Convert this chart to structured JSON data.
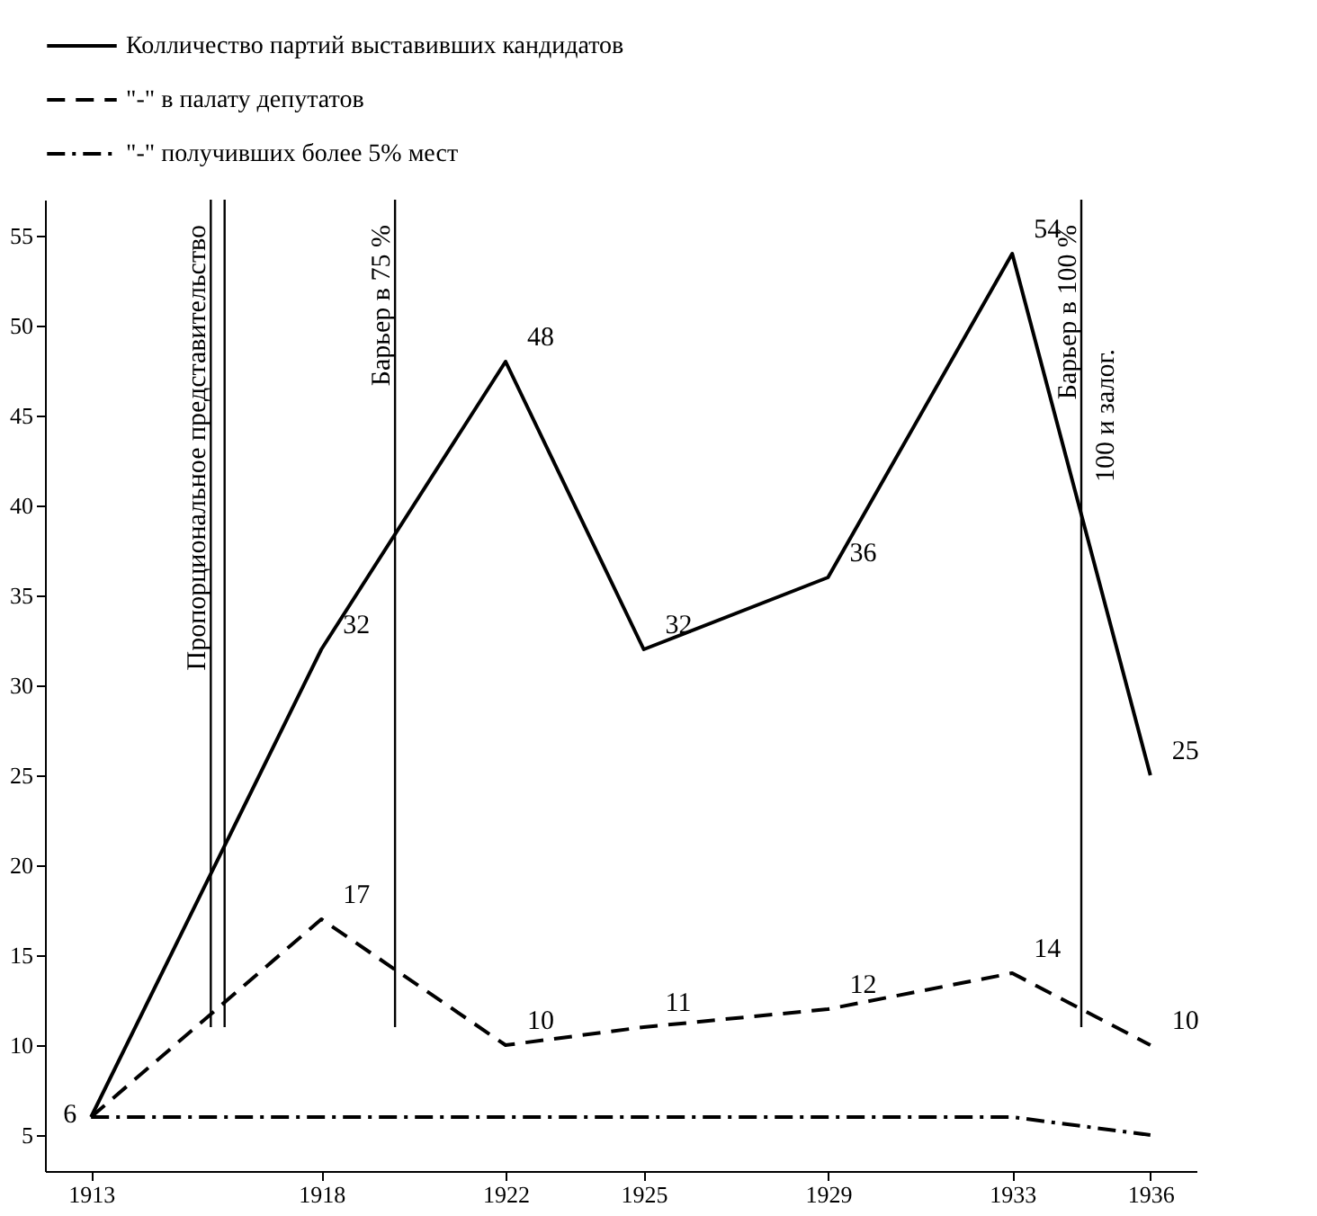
{
  "chart_data": {
    "type": "line",
    "x": [
      1913,
      1918,
      1922,
      1925,
      1929,
      1933,
      1936
    ],
    "series": [
      {
        "name": "Колличество партий выставивших кандидатов",
        "color": "#000000",
        "line_style": "solid",
        "values": [
          6,
          32,
          48,
          32,
          36,
          54,
          25
        ],
        "value_labels": [
          "6",
          "32",
          "48",
          "32",
          "36",
          "54",
          "25"
        ]
      },
      {
        "name": "\"-\" в палату депутатов",
        "color": "#000000",
        "line_style": "dashed",
        "values": [
          6,
          17,
          10,
          11,
          12,
          14,
          10
        ],
        "value_labels": [
          null,
          "17",
          "10",
          "11",
          "12",
          "14",
          "10"
        ]
      },
      {
        "name": "\"-\" получивших более 5% мест",
        "color": "#000000",
        "line_style": "dotted",
        "values": [
          6,
          6,
          6,
          6,
          6,
          6,
          5
        ]
      }
    ],
    "xlim": [
      1912,
      1937
    ],
    "xticks": [
      1913,
      1918,
      1922,
      1925,
      1929,
      1933,
      1936
    ],
    "ylim": [
      3,
      57
    ],
    "yticks": [
      5,
      10,
      15,
      20,
      25,
      30,
      35,
      40,
      45,
      50,
      55
    ],
    "ref_lines": [
      {
        "axis": "x",
        "value": 1915.6,
        "label": "Пропорциональное представительство",
        "color": "#000000"
      },
      {
        "axis": "x",
        "value": 1915.9,
        "color": "#000000"
      },
      {
        "axis": "x",
        "value": 1919.6,
        "label": "Барьер в 75 %",
        "color": "#000000"
      },
      {
        "axis": "x",
        "value": 1934.5,
        "label": "Барьер в 100 %",
        "color": "#000000"
      }
    ],
    "annotations": [
      {
        "text": "100 и залог.",
        "x": 1934.5,
        "y": 45
      }
    ],
    "grid": false,
    "legend": "top",
    "marker": "none"
  }
}
